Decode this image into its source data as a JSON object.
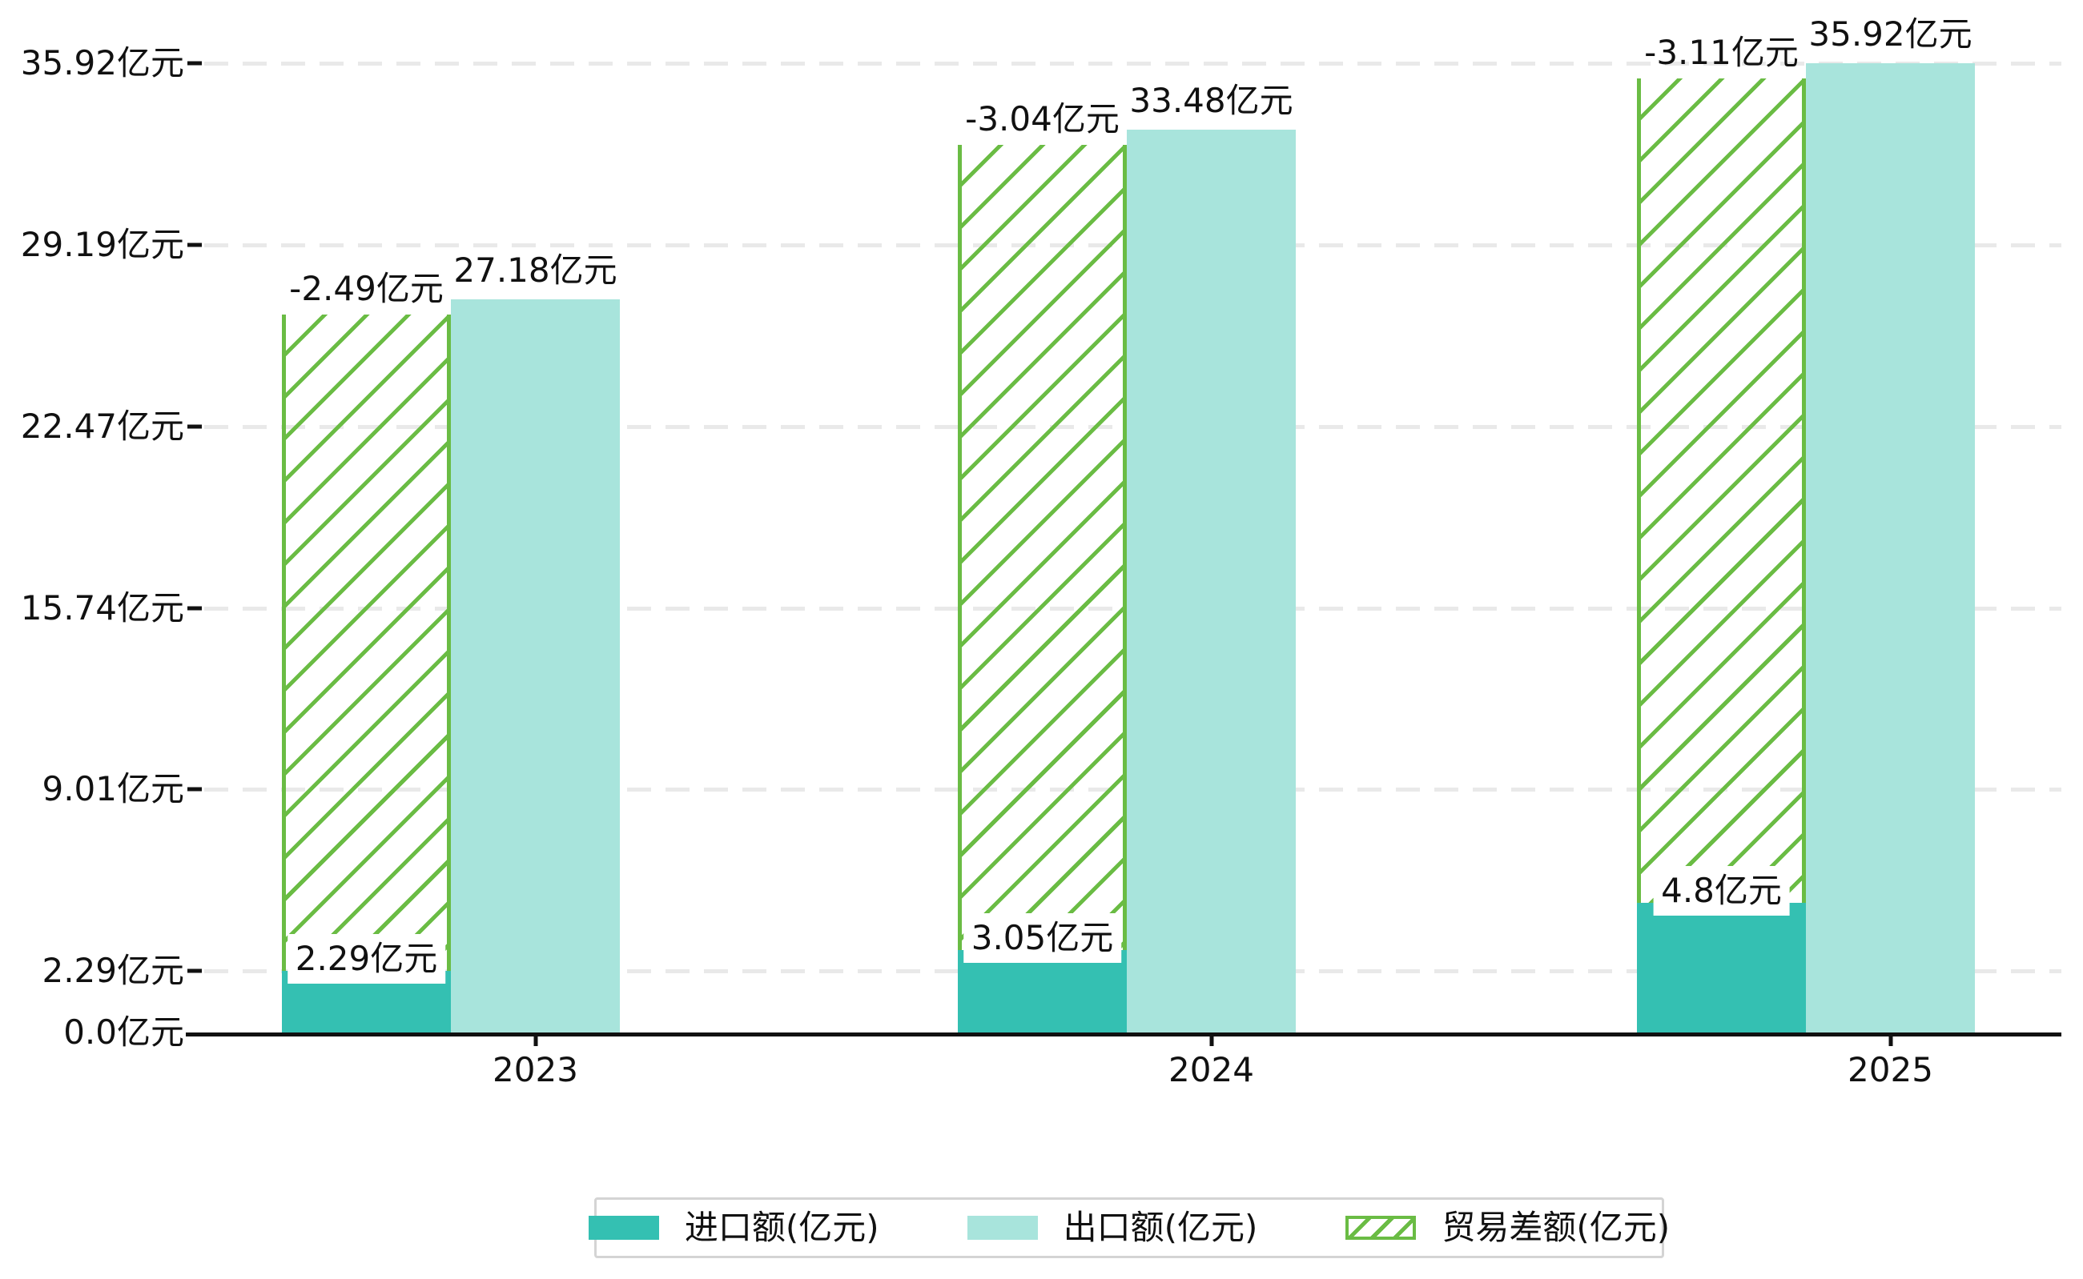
{
  "chart_data": {
    "type": "bar",
    "title": "",
    "xlabel": "",
    "ylabel": "",
    "categories": [
      "2023",
      "2024",
      "2025"
    ],
    "series": [
      {
        "name": "进口额(亿元)",
        "role": "import",
        "values": [
          2.29,
          3.05,
          4.8
        ],
        "labels": [
          "2.29亿元",
          "3.05亿元",
          "4.8亿元"
        ],
        "color": "#34c0b2"
      },
      {
        "name": "出口额(亿元)",
        "role": "export",
        "values": [
          27.18,
          33.48,
          35.92
        ],
        "labels": [
          "27.18亿元",
          "33.48亿元",
          "35.92亿元"
        ],
        "color": "#a8e4dc"
      },
      {
        "name": "贸易差额(亿元)",
        "role": "trade-diff",
        "values": [
          -2.49,
          -3.04,
          -3.11
        ],
        "labels": [
          "-2.49亿元",
          "-3.04亿元",
          "-3.11亿元"
        ],
        "color": "#6abc44",
        "pattern": "diagonal-hatch",
        "note": "hatched bar stacked on import bar, top near export level"
      }
    ],
    "y_ticks": [
      {
        "value": 0,
        "label": "0.0亿元"
      },
      {
        "value": 2.29,
        "label": "2.29亿元"
      },
      {
        "value": 9.01,
        "label": "9.01亿元"
      },
      {
        "value": 15.74,
        "label": "15.74亿元"
      },
      {
        "value": 22.47,
        "label": "22.47亿元"
      },
      {
        "value": 29.19,
        "label": "29.19亿元"
      },
      {
        "value": 35.92,
        "label": "35.92亿元"
      }
    ],
    "ylim": [
      0,
      35.92
    ],
    "grid": "horizontal-dashed",
    "legend_position": "bottom"
  },
  "legend": {
    "items": [
      {
        "label": "进口额(亿元)",
        "swatch": "solid-teal"
      },
      {
        "label": "出口额(亿元)",
        "swatch": "solid-light-teal"
      },
      {
        "label": "贸易差额(亿元)",
        "swatch": "green-diagonal-hatch"
      }
    ]
  },
  "colors": {
    "import_bar": "#34c0b2",
    "export_bar": "#a8e4dc",
    "diff_hatch": "#6abc44",
    "axis": "#111111",
    "gridline": "#e9e9e9",
    "legend_border": "#d4d4d4",
    "text": "#111111"
  }
}
